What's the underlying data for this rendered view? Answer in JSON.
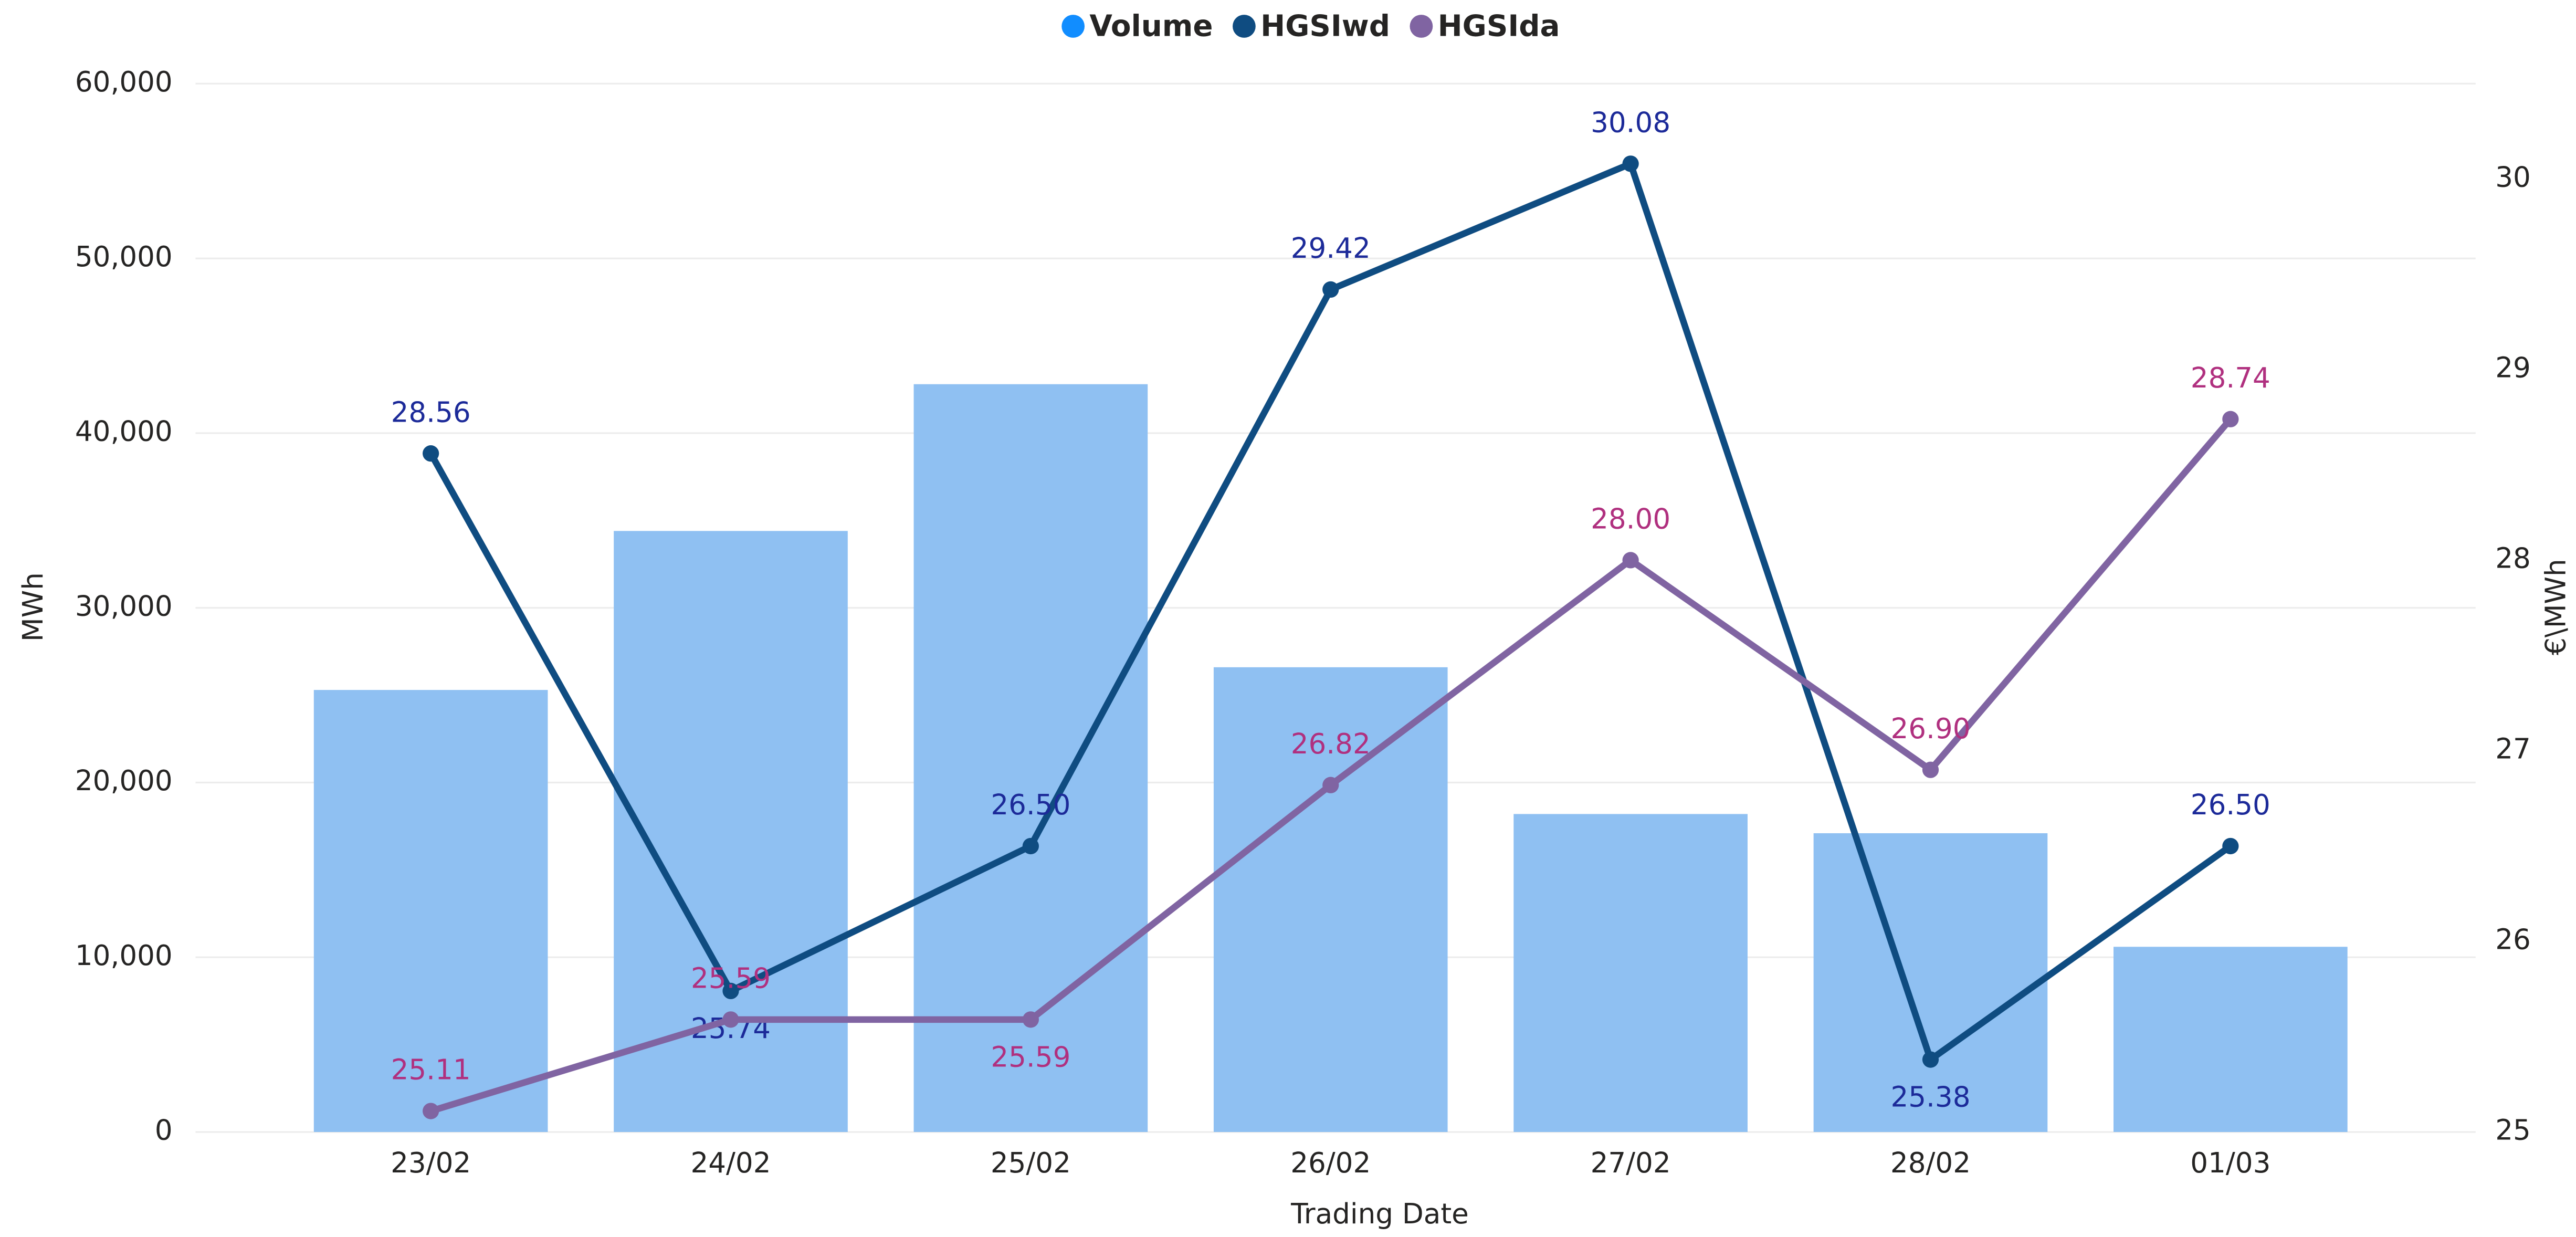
{
  "chart_data": {
    "type": "bar_line",
    "x_label": "Trading Date",
    "y_label": "MWh",
    "y2_label": "€\\MWh",
    "categories": [
      "23/02",
      "24/02",
      "25/02",
      "26/02",
      "27/02",
      "28/02",
      "01/03"
    ],
    "ylim": [
      0,
      60000
    ],
    "yticks": [
      0,
      {
        "value": 10000,
        "label": "10,000"
      },
      {
        "value": 20000,
        "label": "20,000"
      },
      {
        "value": 30000,
        "label": "30,000"
      },
      {
        "value": 40000,
        "label": "40,000"
      },
      {
        "value": 50000,
        "label": "50,000"
      },
      {
        "value": 60000,
        "label": "60,000"
      }
    ],
    "y2lim": [
      25,
      30.5
    ],
    "y2ticks": [
      25,
      26,
      27,
      28,
      29,
      30
    ],
    "grid": true,
    "legend": "top",
    "series": [
      {
        "name": "Volume",
        "type": "bar",
        "color": "#8fc0f2",
        "legend_color": "#118dff",
        "values": [
          25300,
          34400,
          42800,
          26600,
          18200,
          17100,
          10600
        ]
      },
      {
        "name": "HGSIwd",
        "type": "line",
        "axis": "y2",
        "color": "#0f4c81",
        "label_color": "#1c2a99",
        "values": [
          28.56,
          25.74,
          26.5,
          29.42,
          30.08,
          25.38,
          26.5
        ],
        "value_labels": [
          "28.56",
          "25.74",
          "26.50",
          "29.42",
          "30.08",
          "25.38",
          "26.50"
        ]
      },
      {
        "name": "HGSIda",
        "type": "line",
        "axis": "y2",
        "color": "#8064a2",
        "label_color": "#b0307f",
        "values": [
          25.11,
          25.59,
          25.59,
          26.82,
          28.0,
          26.9,
          28.74
        ],
        "value_labels": [
          "25.11",
          "25.59",
          "25.59",
          "26.82",
          "28.00",
          "26.90",
          "28.74"
        ]
      }
    ]
  }
}
